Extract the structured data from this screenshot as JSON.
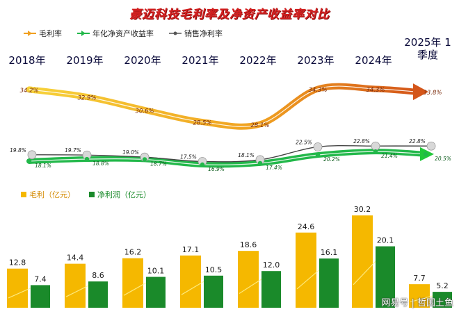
{
  "title": "豪迈科技毛利率及净资产收益率对比",
  "legend_top": {
    "gross_margin": "毛利率",
    "roe": "年化净资产收益率",
    "net_margin": "销售净利率"
  },
  "legend_bottom": {
    "gross_profit": "毛利（亿元）",
    "net_profit": "净利润（亿元）"
  },
  "watermark": "网易号 | 哲国土鱼",
  "colors": {
    "gross_margin": "#f0a020",
    "roe": "#22b84a",
    "net_margin": "#555555",
    "bar_gross": "#f5b800",
    "bar_net": "#1a8a2a",
    "title": "#d42020"
  },
  "chart_data": [
    {
      "type": "line",
      "categories": [
        "2018年",
        "2019年",
        "2020年",
        "2021年",
        "2022年",
        "2023年",
        "2024年",
        "2025年 1季度"
      ],
      "series": [
        {
          "name": "毛利率",
          "values": [
            34.2,
            32.9,
            30.6,
            28.5,
            28.1,
            34.3,
            34.3,
            33.8
          ],
          "labels": [
            "34.2%",
            "32.9%",
            "30.6%",
            "28.5%",
            "28.1%",
            "34.3%",
            "34.3%",
            "33.8%"
          ]
        },
        {
          "name": "年化净资产收益率",
          "values": [
            18.1,
            18.8,
            18.7,
            16.9,
            17.4,
            20.2,
            21.4,
            20.5
          ],
          "labels": [
            "18.1%",
            "18.8%",
            "18.7%",
            "16.9%",
            "17.4%",
            "20.2%",
            "21.4%",
            "20.5%"
          ]
        },
        {
          "name": "销售净利率",
          "values": [
            19.8,
            19.7,
            19.0,
            17.5,
            18.1,
            22.5,
            22.8,
            22.8
          ],
          "labels": [
            "19.8%",
            "19.7%",
            "19.0%",
            "17.5%",
            "18.1%",
            "22.5%",
            "22.8%",
            "22.8%"
          ]
        }
      ]
    },
    {
      "type": "bar",
      "categories": [
        "2018年",
        "2019年",
        "2020年",
        "2021年",
        "2022年",
        "2023年",
        "2024年",
        "2025年 1季度"
      ],
      "series": [
        {
          "name": "毛利（亿元）",
          "values": [
            12.8,
            14.4,
            16.2,
            17.1,
            18.6,
            24.6,
            30.2,
            7.7
          ],
          "labels": [
            "12.8",
            "14.4",
            "16.2",
            "17.1",
            "18.6",
            "24.6",
            "30.2",
            "7.7"
          ]
        },
        {
          "name": "净利润（亿元）",
          "values": [
            7.4,
            8.6,
            10.1,
            10.5,
            12.0,
            16.1,
            20.1,
            5.2
          ],
          "labels": [
            "7.4",
            "8.6",
            "10.1",
            "10.5",
            "12.0",
            "16.1",
            "20.1",
            "5.2"
          ]
        }
      ]
    }
  ]
}
